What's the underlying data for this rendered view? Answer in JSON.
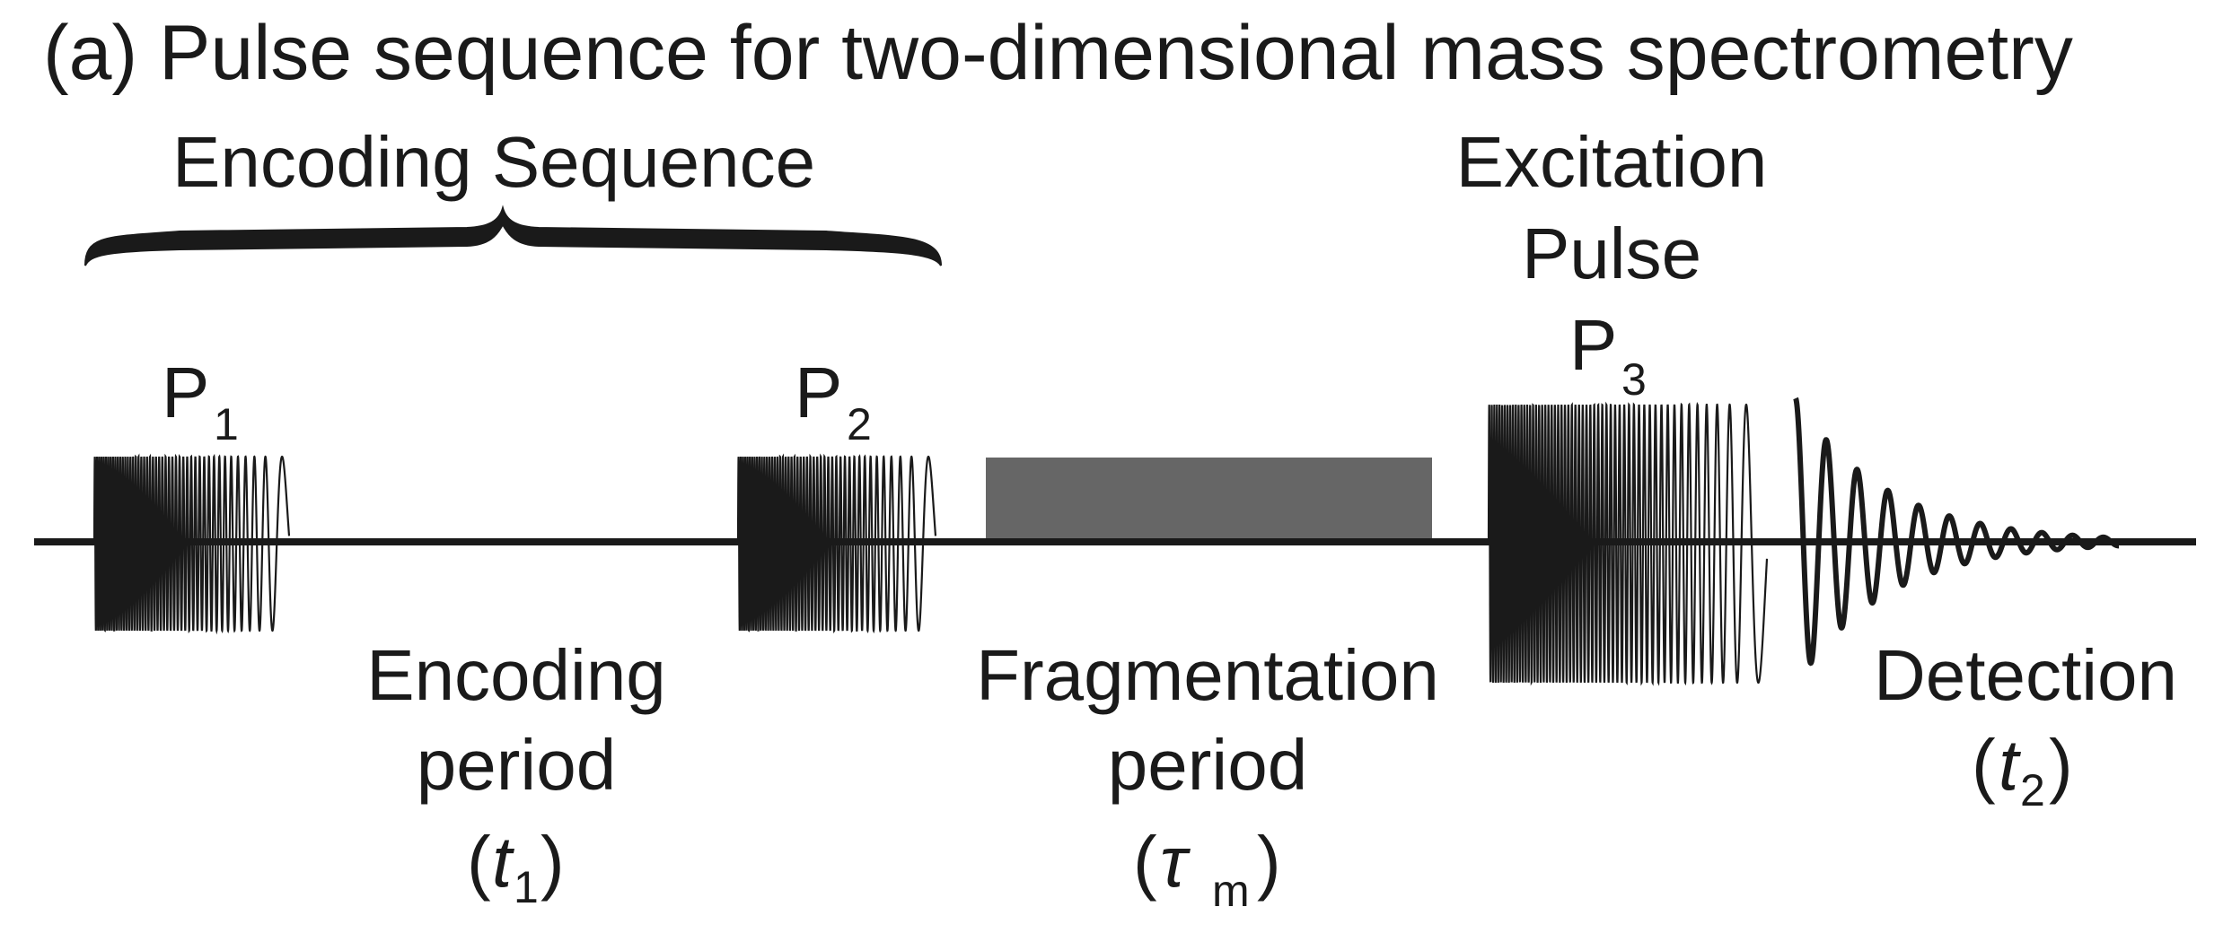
{
  "title": "(a) Pulse sequence for two-dimensional mass spectrometry",
  "encoding_sequence": {
    "label": "Encoding Sequence"
  },
  "excitation": {
    "line1": "Excitation",
    "line2": "Pulse"
  },
  "pulses": {
    "p1": {
      "letter": "P",
      "sub": "1"
    },
    "p2": {
      "letter": "P",
      "sub": "2"
    },
    "p3": {
      "letter": "P",
      "sub": "3"
    }
  },
  "encoding_period": {
    "line1": "Encoding",
    "line2": "period",
    "open": "(",
    "var": "t",
    "sub": "1",
    "close": ")"
  },
  "fragmentation_period": {
    "line1": "Fragmentation",
    "line2": "period",
    "open": "(",
    "var": "τ",
    "sub": "m",
    "close": ")"
  },
  "detection": {
    "line1": "Detection",
    "open": "(",
    "var": "t",
    "sub": "2",
    "close": ")"
  },
  "colors": {
    "ink": "#1a1a1a",
    "block": "#666666"
  }
}
